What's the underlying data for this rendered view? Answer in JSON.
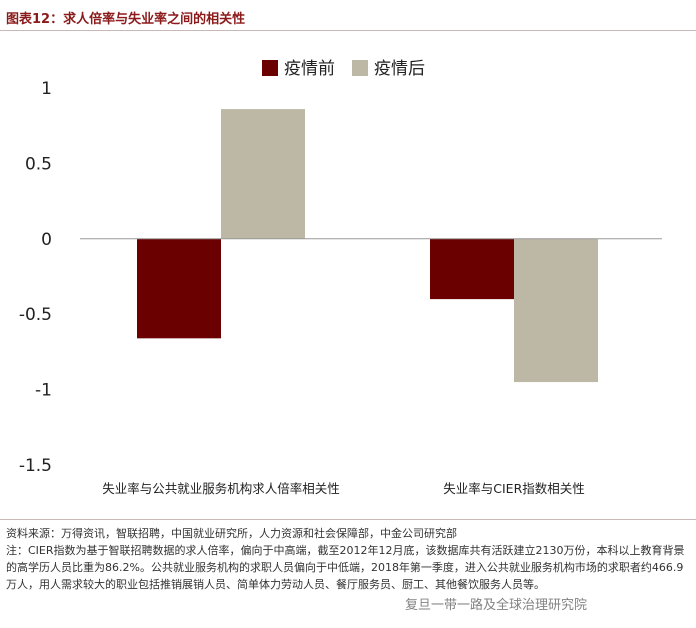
{
  "figure": {
    "title": "图表12：求人倍率与失业率之间的相关性"
  },
  "colors": {
    "pre": "#6b0000",
    "post": "#bdb8a6",
    "axis": "#999999",
    "title": "#8b1a1a"
  },
  "chart_data": {
    "type": "bar",
    "categories": [
      "失业率与公共就业服务机构求人倍率相关性",
      "失业率与CIER指数相关性"
    ],
    "series": [
      {
        "name": "疫情前",
        "values": [
          -0.66,
          -0.4
        ]
      },
      {
        "name": "疫情后",
        "values": [
          0.86,
          -0.95
        ]
      }
    ],
    "ylim": [
      -1.5,
      1
    ],
    "yticks": [
      1,
      0.5,
      0,
      -0.5,
      -1,
      -1.5
    ],
    "ytick_labels": [
      "1",
      "0.5",
      "0",
      "-0.5",
      "-1",
      "-1.5"
    ],
    "legend_position": "top-center",
    "grid": false
  },
  "notes": {
    "source": "资料来源：万得资讯，智联招聘，中国就业研究所，人力资源和社会保障部，中金公司研究部",
    "note": "注：CIER指数为基于智联招聘数据的求人倍率，偏向于中高端，截至2012年12月底，该数据库共有活跃建立2130万份，本科以上教育背景的高学历人员比重为86.2%。公共就业服务机构的求职人员偏向于中低端，2018年第一季度，进入公共就业服务机构市场的求职者约466.9万人，用人需求较大的职业包括推销展销人员、简单体力劳动人员、餐厅服务员、厨工、其他餐饮服务人员等。"
  },
  "watermark": "复旦一带一路及全球治理研究院"
}
